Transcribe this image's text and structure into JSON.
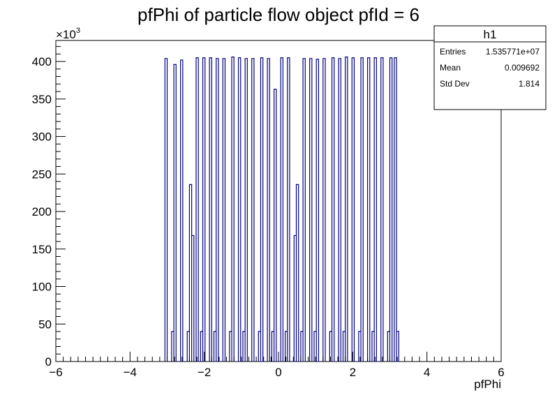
{
  "chart_data": {
    "type": "bar",
    "title": "pfPhi of particle flow object pfId = 6",
    "xlabel": "pfPhi",
    "ylabel": "",
    "y_multiplier_label": "×10",
    "y_multiplier_exponent": "3",
    "xlim": [
      -6,
      6
    ],
    "ylim": [
      0,
      428
    ],
    "x_ticks": [
      -6,
      -4,
      -2,
      0,
      2,
      4,
      6
    ],
    "y_ticks": [
      0,
      50,
      100,
      150,
      200,
      250,
      300,
      350,
      400
    ],
    "bin_width": 0.06,
    "line_color": "#000080",
    "grid": false,
    "legend": "none",
    "series": [
      {
        "name": "h1",
        "values": [
          [
            -3.06,
            404
          ],
          [
            -2.88,
            40
          ],
          [
            -2.82,
            396
          ],
          [
            -2.64,
            402
          ],
          [
            -2.46,
            40
          ],
          [
            -2.4,
            236
          ],
          [
            -2.34,
            168
          ],
          [
            -2.22,
            405
          ],
          [
            -2.1,
            40
          ],
          [
            -2.04,
            405
          ],
          [
            -1.86,
            405
          ],
          [
            -1.74,
            40
          ],
          [
            -1.68,
            404
          ],
          [
            -1.5,
            404
          ],
          [
            -1.32,
            40
          ],
          [
            -1.26,
            406
          ],
          [
            -1.08,
            405
          ],
          [
            -0.96,
            40
          ],
          [
            -0.9,
            404
          ],
          [
            -0.72,
            404
          ],
          [
            -0.54,
            40
          ],
          [
            -0.48,
            405
          ],
          [
            -0.3,
            404
          ],
          [
            -0.18,
            40
          ],
          [
            -0.12,
            363
          ],
          [
            0.06,
            405
          ],
          [
            0.18,
            40
          ],
          [
            0.24,
            405
          ],
          [
            0.42,
            168
          ],
          [
            0.48,
            236
          ],
          [
            0.6,
            40
          ],
          [
            0.66,
            404
          ],
          [
            0.84,
            404
          ],
          [
            0.96,
            40
          ],
          [
            1.02,
            403
          ],
          [
            1.2,
            404
          ],
          [
            1.38,
            40
          ],
          [
            1.44,
            405
          ],
          [
            1.62,
            404
          ],
          [
            1.74,
            40
          ],
          [
            1.8,
            406
          ],
          [
            1.98,
            405
          ],
          [
            2.16,
            40
          ],
          [
            2.22,
            405
          ],
          [
            2.4,
            405
          ],
          [
            2.52,
            40
          ],
          [
            2.58,
            405
          ],
          [
            2.76,
            405
          ],
          [
            2.94,
            40
          ],
          [
            3.0,
            405
          ],
          [
            3.12,
            405
          ],
          [
            3.18,
            40
          ]
        ]
      }
    ],
    "stats_box": {
      "title": "h1",
      "rows": [
        {
          "label": "Entries",
          "value": "1.535771e+07"
        },
        {
          "label": "Mean",
          "value": "0.009692"
        },
        {
          "label": "Std Dev",
          "value": "1.814"
        }
      ]
    }
  }
}
